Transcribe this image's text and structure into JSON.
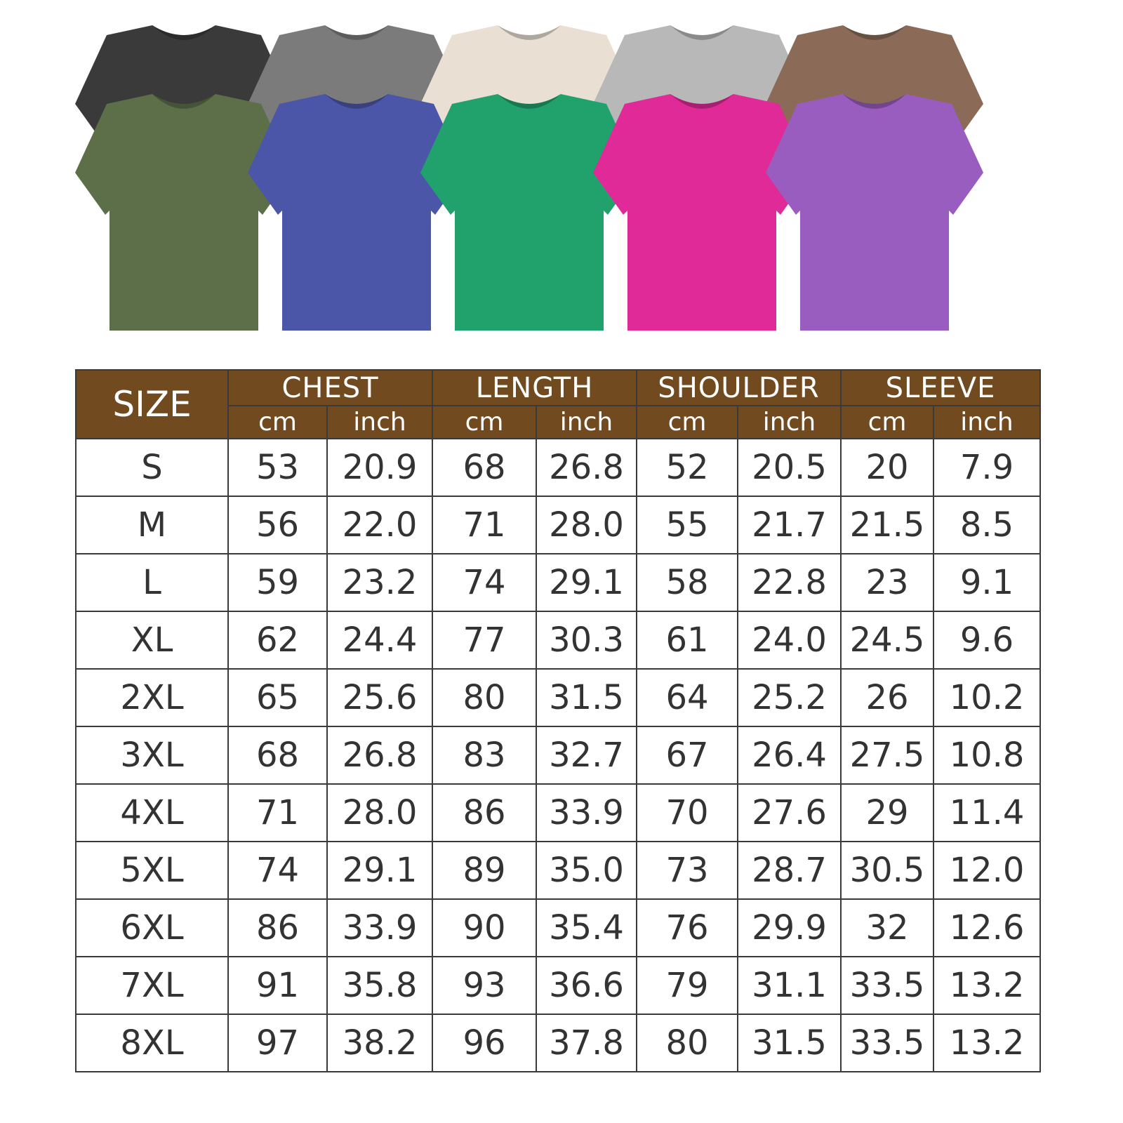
{
  "shirt_colors": {
    "back_row": [
      "#3a3a3a",
      "#7b7b7b",
      "#e9dfd2",
      "#b8b8b8",
      "#8b6b57"
    ],
    "front_row": [
      "#5d6f49",
      "#4b56a9",
      "#21a26d",
      "#df2a98",
      "#985dbf"
    ]
  },
  "header_color": "#714a20",
  "table": {
    "size_label": "SIZE",
    "groups": [
      "CHEST",
      "LENGTH",
      "SHOULDER",
      "SLEEVE"
    ],
    "units": [
      "cm",
      "inch"
    ],
    "rows": [
      [
        "S",
        "53",
        "20.9",
        "68",
        "26.8",
        "52",
        "20.5",
        "20",
        "7.9"
      ],
      [
        "M",
        "56",
        "22.0",
        "71",
        "28.0",
        "55",
        "21.7",
        "21.5",
        "8.5"
      ],
      [
        "L",
        "59",
        "23.2",
        "74",
        "29.1",
        "58",
        "22.8",
        "23",
        "9.1"
      ],
      [
        "XL",
        "62",
        "24.4",
        "77",
        "30.3",
        "61",
        "24.0",
        "24.5",
        "9.6"
      ],
      [
        "2XL",
        "65",
        "25.6",
        "80",
        "31.5",
        "64",
        "25.2",
        "26",
        "10.2"
      ],
      [
        "3XL",
        "68",
        "26.8",
        "83",
        "32.7",
        "67",
        "26.4",
        "27.5",
        "10.8"
      ],
      [
        "4XL",
        "71",
        "28.0",
        "86",
        "33.9",
        "70",
        "27.6",
        "29",
        "11.4"
      ],
      [
        "5XL",
        "74",
        "29.1",
        "89",
        "35.0",
        "73",
        "28.7",
        "30.5",
        "12.0"
      ],
      [
        "6XL",
        "86",
        "33.9",
        "90",
        "35.4",
        "76",
        "29.9",
        "32",
        "12.6"
      ],
      [
        "7XL",
        "91",
        "35.8",
        "93",
        "36.6",
        "79",
        "31.1",
        "33.5",
        "13.2"
      ],
      [
        "8XL",
        "97",
        "38.2",
        "96",
        "37.8",
        "80",
        "31.5",
        "33.5",
        "13.2"
      ]
    ]
  }
}
